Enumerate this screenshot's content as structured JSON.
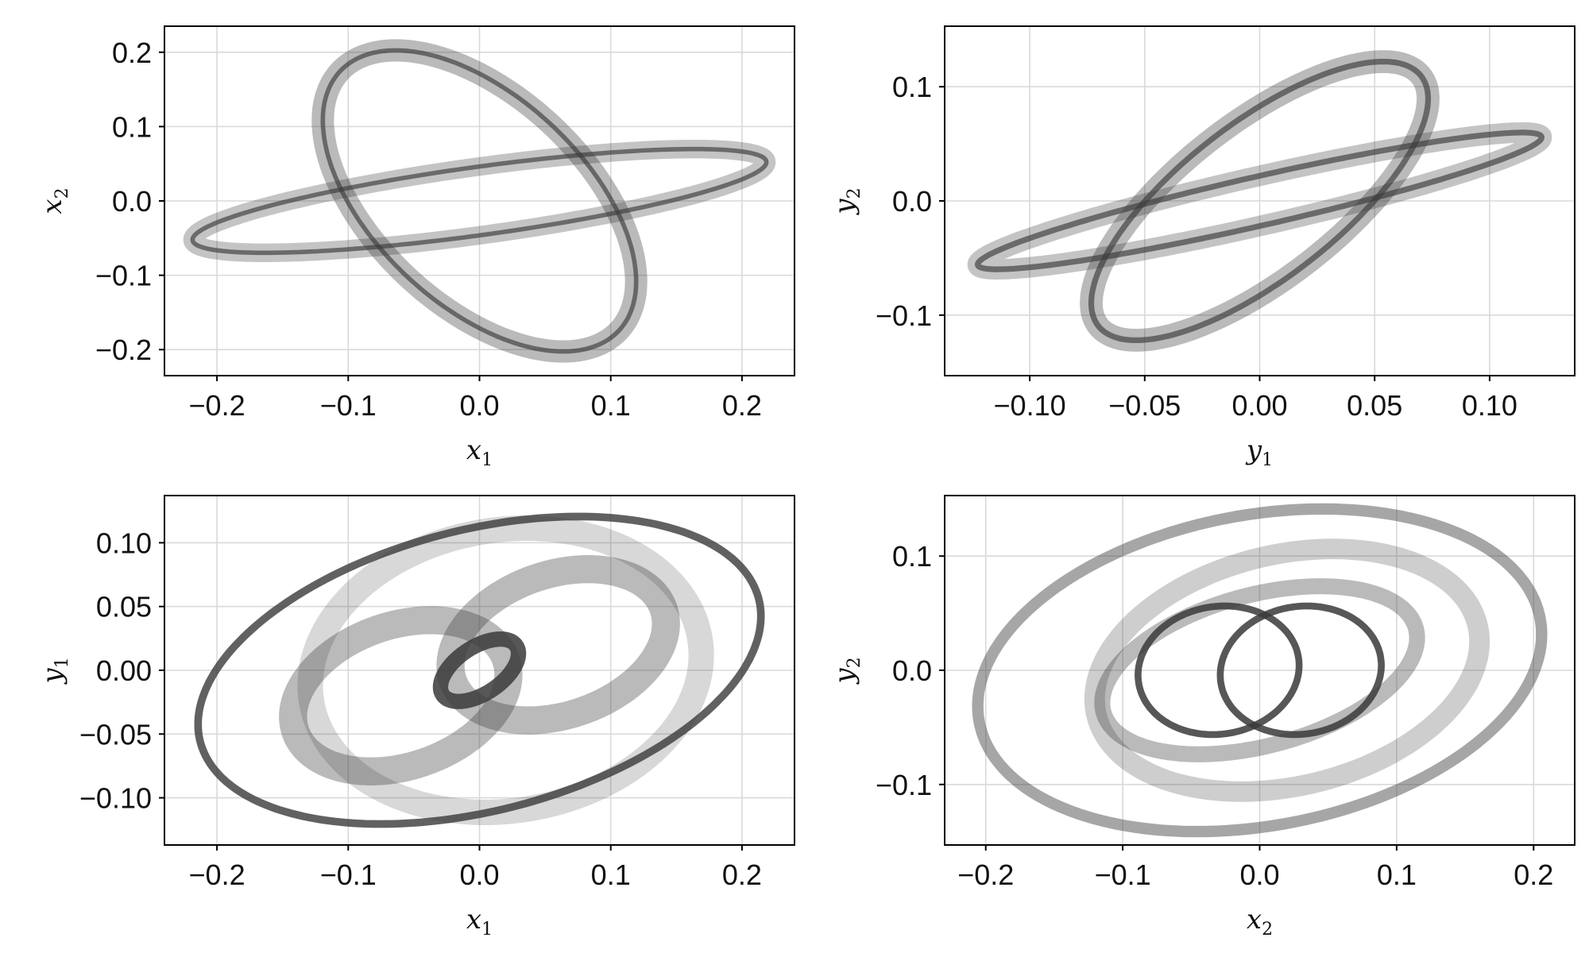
{
  "chart_data": [
    {
      "type": "scatter",
      "title": "",
      "xlabel": {
        "var": "x",
        "sub": "1"
      },
      "ylabel": {
        "var": "x",
        "sub": "2"
      },
      "xlim": [
        -0.24,
        0.24
      ],
      "ylim": [
        -0.235,
        0.235
      ],
      "xticks": [
        -0.2,
        -0.1,
        0.0,
        0.1,
        0.2
      ],
      "xtick_labels": [
        "−0.2",
        "−0.1",
        "0.0",
        "0.1",
        "0.2"
      ],
      "yticks": [
        -0.2,
        -0.1,
        0.0,
        0.1,
        0.2
      ],
      "ytick_labels": [
        "−0.2",
        "−0.1",
        "0.0",
        "0.1",
        "0.2"
      ],
      "grid": true,
      "color": "#3a3a3a",
      "bands": [
        {
          "cx": 0.0,
          "cy": 0.0,
          "a": 0.225,
          "b": 0.045,
          "angle_deg": 14,
          "width": 0.025,
          "opacity": 0.3
        },
        {
          "cx": 0.0,
          "cy": 0.0,
          "a": 0.215,
          "b": 0.095,
          "angle_deg": -68,
          "width": 0.03,
          "opacity": 0.35
        },
        {
          "cx": 0.0,
          "cy": 0.0,
          "a": 0.225,
          "b": 0.045,
          "angle_deg": 14,
          "width": 0.006,
          "opacity": 0.65
        },
        {
          "cx": 0.0,
          "cy": 0.0,
          "a": 0.215,
          "b": 0.095,
          "angle_deg": -68,
          "width": 0.006,
          "opacity": 0.65
        }
      ]
    },
    {
      "type": "scatter",
      "title": "",
      "xlabel": {
        "var": "y",
        "sub": "1"
      },
      "ylabel": {
        "var": "y",
        "sub": "2"
      },
      "xlim": [
        -0.137,
        0.137
      ],
      "ylim": [
        -0.153,
        0.153
      ],
      "xticks": [
        -0.1,
        -0.05,
        0.0,
        0.05,
        0.1
      ],
      "xtick_labels": [
        "−0.10",
        "−0.05",
        "0.00",
        "0.05",
        "0.10"
      ],
      "yticks": [
        -0.1,
        0.0,
        0.1
      ],
      "ytick_labels": [
        "−0.1",
        "0.0",
        "0.1"
      ],
      "grid": true,
      "color": "#3a3a3a",
      "bands": [
        {
          "cx": 0.0,
          "cy": 0.0,
          "a": 0.135,
          "b": 0.02,
          "angle_deg": 25,
          "width": 0.018,
          "opacity": 0.3
        },
        {
          "cx": 0.0,
          "cy": 0.0,
          "a": 0.135,
          "b": 0.045,
          "angle_deg": 63,
          "width": 0.02,
          "opacity": 0.35
        },
        {
          "cx": 0.0,
          "cy": 0.0,
          "a": 0.135,
          "b": 0.02,
          "angle_deg": 25,
          "width": 0.005,
          "opacity": 0.65
        },
        {
          "cx": 0.0,
          "cy": 0.0,
          "a": 0.135,
          "b": 0.045,
          "angle_deg": 63,
          "width": 0.005,
          "opacity": 0.65
        }
      ]
    },
    {
      "type": "scatter",
      "title": "",
      "xlabel": {
        "var": "x",
        "sub": "1"
      },
      "ylabel": {
        "var": "y",
        "sub": "1"
      },
      "xlim": [
        -0.24,
        0.24
      ],
      "ylim": [
        -0.137,
        0.137
      ],
      "xticks": [
        -0.2,
        -0.1,
        0.0,
        0.1,
        0.2
      ],
      "xtick_labels": [
        "−0.2",
        "−0.1",
        "0.0",
        "0.1",
        "0.2"
      ],
      "yticks": [
        -0.1,
        -0.05,
        0.0,
        0.05,
        0.1
      ],
      "ytick_labels": [
        "−0.10",
        "−0.05",
        "0.00",
        "0.05",
        "0.10"
      ],
      "grid": true,
      "color": "#3a3a3a",
      "bands": [
        {
          "cx": 0.0,
          "cy": 0.0,
          "a": 0.22,
          "b": 0.11,
          "angle_deg": 15,
          "width": 0.006,
          "opacity": 0.8
        },
        {
          "cx": 0.02,
          "cy": 0.0,
          "a": 0.15,
          "b": 0.11,
          "angle_deg": 10,
          "width": 0.02,
          "opacity": 0.2
        },
        {
          "cx": -0.06,
          "cy": -0.02,
          "a": 0.085,
          "b": 0.055,
          "angle_deg": 20,
          "width": 0.022,
          "opacity": 0.35
        },
        {
          "cx": 0.06,
          "cy": 0.02,
          "a": 0.085,
          "b": 0.055,
          "angle_deg": 20,
          "width": 0.022,
          "opacity": 0.35
        },
        {
          "cx": 0.0,
          "cy": 0.0,
          "a": 0.034,
          "b": 0.018,
          "angle_deg": 35,
          "width": 0.012,
          "opacity": 0.85
        }
      ]
    },
    {
      "type": "scatter",
      "title": "",
      "xlabel": {
        "var": "x",
        "sub": "2"
      },
      "ylabel": {
        "var": "y",
        "sub": "2"
      },
      "xlim": [
        -0.23,
        0.23
      ],
      "ylim": [
        -0.153,
        0.153
      ],
      "xticks": [
        -0.2,
        -0.1,
        0.0,
        0.1,
        0.2
      ],
      "xtick_labels": [
        "−0.2",
        "−0.1",
        "0.0",
        "0.1",
        "0.2"
      ],
      "yticks": [
        -0.1,
        0.0,
        0.1
      ],
      "ytick_labels": [
        "−0.1",
        "0.0",
        "0.1"
      ],
      "grid": true,
      "color": "#3a3a3a",
      "bands": [
        {
          "cx": 0.0,
          "cy": 0.0,
          "a": 0.21,
          "b": 0.135,
          "angle_deg": 15,
          "width": 0.01,
          "opacity": 0.45
        },
        {
          "cx": 0.02,
          "cy": 0.0,
          "a": 0.145,
          "b": 0.1,
          "angle_deg": 20,
          "width": 0.018,
          "opacity": 0.25
        },
        {
          "cx": 0.0,
          "cy": 0.0,
          "a": 0.12,
          "b": 0.065,
          "angle_deg": 20,
          "width": 0.014,
          "opacity": 0.35
        },
        {
          "cx": -0.03,
          "cy": 0.0,
          "a": 0.06,
          "b": 0.055,
          "angle_deg": 30,
          "width": 0.006,
          "opacity": 0.85
        },
        {
          "cx": 0.03,
          "cy": 0.0,
          "a": 0.06,
          "b": 0.055,
          "angle_deg": 30,
          "width": 0.006,
          "opacity": 0.85
        }
      ]
    }
  ]
}
